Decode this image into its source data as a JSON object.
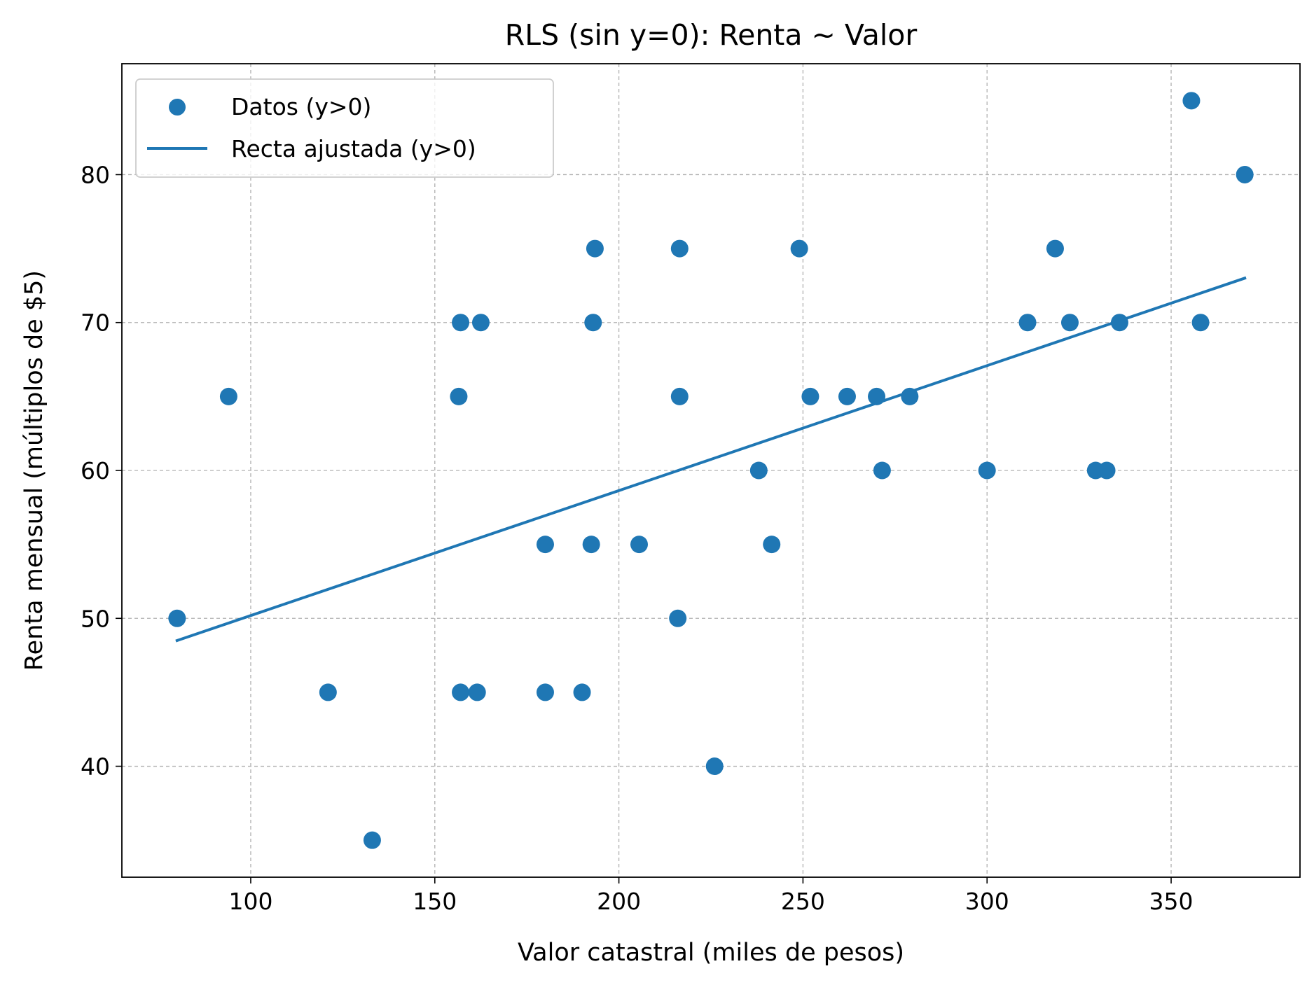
{
  "chart_data": {
    "type": "scatter",
    "title": "RLS (sin y=0): Renta ~ Valor",
    "xlabel": "Valor catastral (miles de pesos)",
    "ylabel": "Renta mensual (múltiplos de $5)",
    "xlim": [
      65,
      385
    ],
    "ylim": [
      32.5,
      87.5
    ],
    "xticks": [
      100,
      150,
      200,
      250,
      300,
      350
    ],
    "yticks": [
      40,
      50,
      60,
      70,
      80
    ],
    "grid": true,
    "legend_position": "upper-left",
    "colors": {
      "series": "#1f77b4",
      "axes": "#000000",
      "grid": "#b0b0b0"
    },
    "series": [
      {
        "name": "Datos (y>0)",
        "kind": "scatter",
        "points": [
          {
            "x": 80,
            "y": 50
          },
          {
            "x": 94,
            "y": 65
          },
          {
            "x": 121,
            "y": 45
          },
          {
            "x": 133,
            "y": 35
          },
          {
            "x": 156.5,
            "y": 65
          },
          {
            "x": 157,
            "y": 70
          },
          {
            "x": 157,
            "y": 45
          },
          {
            "x": 161.5,
            "y": 45
          },
          {
            "x": 162.5,
            "y": 70
          },
          {
            "x": 180,
            "y": 55
          },
          {
            "x": 180,
            "y": 45
          },
          {
            "x": 190,
            "y": 45
          },
          {
            "x": 192.5,
            "y": 55
          },
          {
            "x": 193,
            "y": 70
          },
          {
            "x": 193.5,
            "y": 75
          },
          {
            "x": 205.5,
            "y": 55
          },
          {
            "x": 216,
            "y": 50
          },
          {
            "x": 216.5,
            "y": 65
          },
          {
            "x": 216.5,
            "y": 75
          },
          {
            "x": 226,
            "y": 40
          },
          {
            "x": 238,
            "y": 60
          },
          {
            "x": 241.5,
            "y": 55
          },
          {
            "x": 249,
            "y": 75
          },
          {
            "x": 252,
            "y": 65
          },
          {
            "x": 262,
            "y": 65
          },
          {
            "x": 270,
            "y": 65
          },
          {
            "x": 271.5,
            "y": 60
          },
          {
            "x": 279,
            "y": 65
          },
          {
            "x": 300,
            "y": 60
          },
          {
            "x": 311,
            "y": 70
          },
          {
            "x": 318.5,
            "y": 75
          },
          {
            "x": 322.5,
            "y": 70
          },
          {
            "x": 329.5,
            "y": 60
          },
          {
            "x": 332.5,
            "y": 60
          },
          {
            "x": 336,
            "y": 70
          },
          {
            "x": 355.5,
            "y": 85
          },
          {
            "x": 358,
            "y": 70
          },
          {
            "x": 370,
            "y": 80
          }
        ]
      },
      {
        "name": "Recta ajustada (y>0)",
        "kind": "line",
        "points": [
          {
            "x": 80,
            "y": 48.5
          },
          {
            "x": 370,
            "y": 73
          }
        ]
      }
    ]
  }
}
